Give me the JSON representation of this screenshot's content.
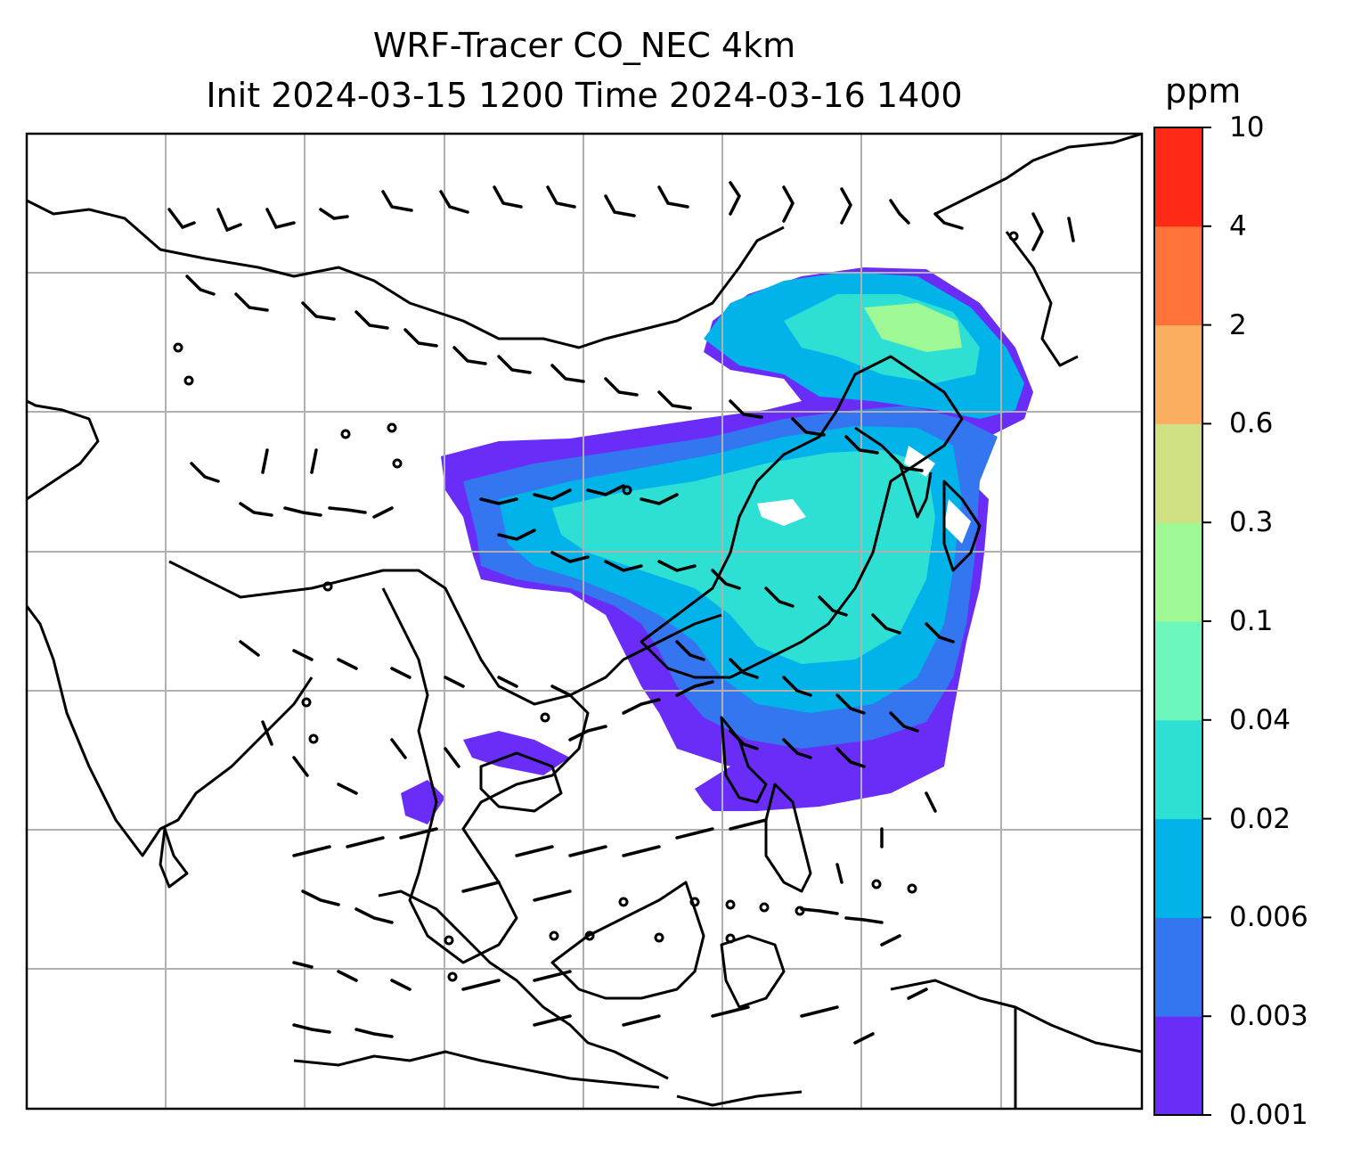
{
  "title_line1": "WRF-Tracer CO_NEC 4km",
  "title_line2": "Init 2024-03-15 1200 Time 2024-03-16 1400",
  "colorbar": {
    "units": "ppm",
    "ticks": [
      "0.001",
      "0.003",
      "0.006",
      "0.02",
      "0.04",
      "0.1",
      "0.3",
      "0.6",
      "2",
      "4",
      "10"
    ],
    "colors": [
      "#6a2cf7",
      "#3475f0",
      "#02b3ea",
      "#2ee0d4",
      "#6ef7bc",
      "#9ef894",
      "#cfe183",
      "#fcae60",
      "#ff733a",
      "#ff2a15"
    ]
  },
  "plume_colors": {
    "outer": "#6a2cf7",
    "low": "#3475f0",
    "mid": "#02b3ea",
    "high": "#2ee0d4",
    "peak": "#9ef894"
  }
}
